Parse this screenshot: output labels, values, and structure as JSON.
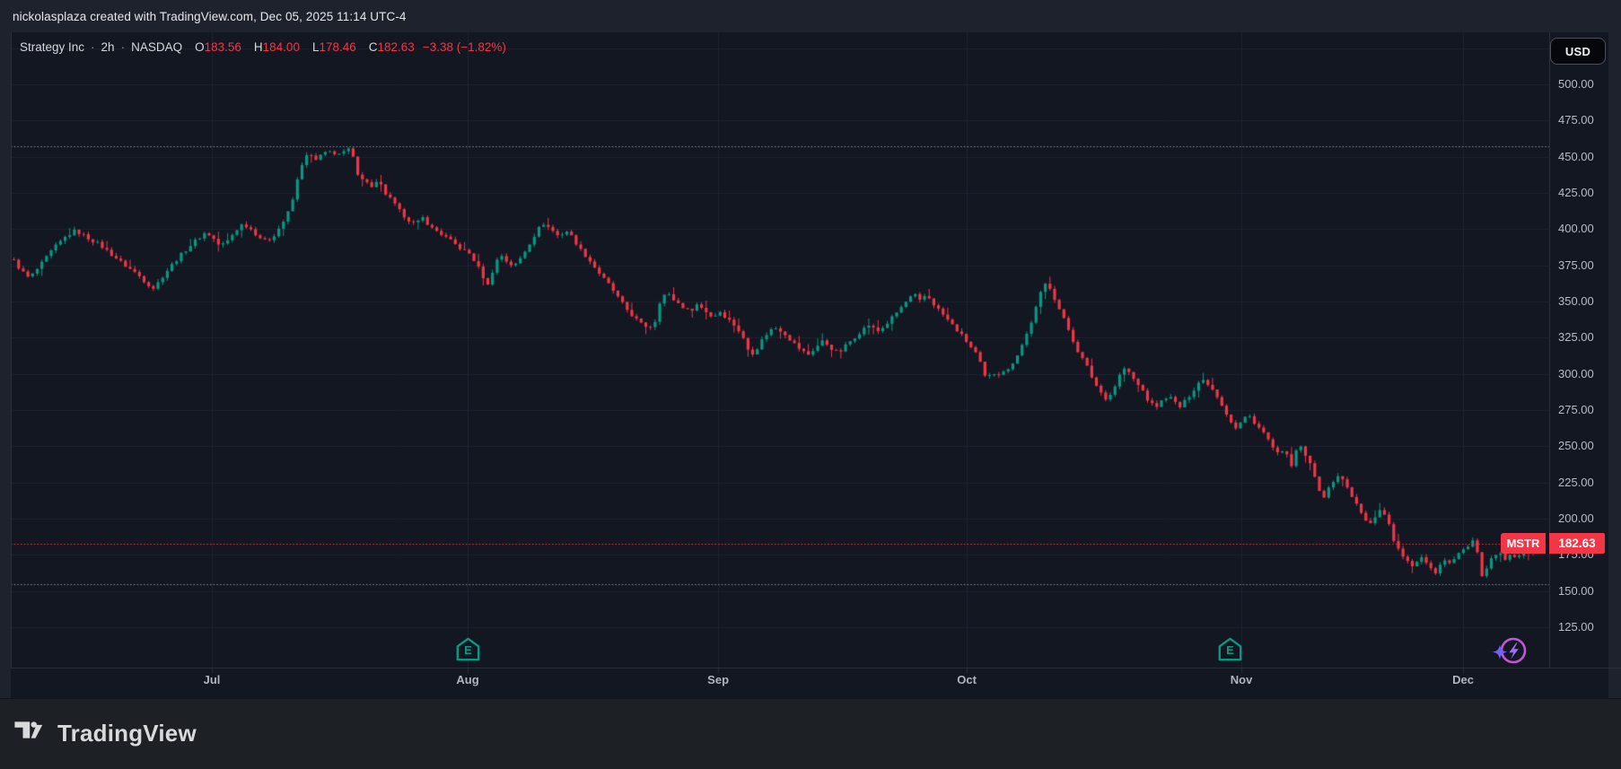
{
  "attribution": {
    "text": "nickolasplaza created with TradingView.com, Dec 05, 2025 11:14 UTC-4"
  },
  "legend": {
    "symbol": "Strategy Inc",
    "separator": "·",
    "interval": "2h",
    "exchange": "NASDAQ",
    "open_label": "O",
    "open": "183.56",
    "high_label": "H",
    "high": "184.00",
    "low_label": "L",
    "low": "178.46",
    "close_label": "C",
    "close": "182.63",
    "change": "−3.38 (−1.82%)"
  },
  "currency_button": {
    "label": "USD"
  },
  "price_label": {
    "ticker": "MSTR",
    "price": "182.63",
    "value": 182.63
  },
  "axis": {
    "price_ticks": [
      {
        "label": "500.00",
        "value": 500
      },
      {
        "label": "475.00",
        "value": 475
      },
      {
        "label": "450.00",
        "value": 450
      },
      {
        "label": "425.00",
        "value": 425
      },
      {
        "label": "400.00",
        "value": 400
      },
      {
        "label": "375.00",
        "value": 375
      },
      {
        "label": "350.00",
        "value": 350
      },
      {
        "label": "325.00",
        "value": 325
      },
      {
        "label": "300.00",
        "value": 300
      },
      {
        "label": "275.00",
        "value": 275
      },
      {
        "label": "250.00",
        "value": 250
      },
      {
        "label": "225.00",
        "value": 225
      },
      {
        "label": "200.00",
        "value": 200
      },
      {
        "label": "175.00",
        "value": 175
      },
      {
        "label": "150.00",
        "value": 150
      },
      {
        "label": "125.00",
        "value": 125
      }
    ],
    "months": [
      {
        "label": "Jul",
        "f": 0.1307
      },
      {
        "label": "Aug",
        "f": 0.297
      },
      {
        "label": "Sep",
        "f": 0.4598
      },
      {
        "label": "Oct",
        "f": 0.6214
      },
      {
        "label": "Nov",
        "f": 0.7999
      },
      {
        "label": "Dec",
        "f": 0.944
      }
    ]
  },
  "markers": {
    "earnings_letter": "E",
    "earnings": [
      {
        "f": 0.297
      },
      {
        "f": 0.7928
      }
    ],
    "flash": {
      "f": 0.9743
    }
  },
  "footer": {
    "brand": "TradingView"
  },
  "colors": {
    "up": "#089981",
    "down": "#f23645",
    "price_line": "#f23645",
    "price_label_bg": "#f23645",
    "range_dotted": "#8b8e98",
    "grid": "#1e2330",
    "pane_bg": "#131722",
    "chrome_bg": "#1e222d",
    "axis_text": "#b8bbc3",
    "earnings": "#089981",
    "flash_ring": "#c653dc",
    "flash_bolt": "#9d71f0",
    "flash_star": "#6e62f5"
  },
  "chart_data": {
    "type": "candlestick",
    "symbol": "MSTR",
    "name": "Strategy Inc",
    "exchange": "NASDAQ",
    "interval": "2h",
    "currency": "USD",
    "last_bar": {
      "open": 183.56,
      "high": 184.0,
      "low": 178.46,
      "close": 182.63,
      "change": -3.38,
      "change_pct": -1.82
    },
    "visible_high": 457.5,
    "visible_low": 154.5,
    "y_axis_ticks": [
      500,
      475,
      450,
      425,
      400,
      375,
      350,
      325,
      300,
      275,
      250,
      225,
      200,
      175,
      150,
      125
    ],
    "x_months": [
      "Jul",
      "Aug",
      "Sep",
      "Oct",
      "Nov",
      "Dec"
    ],
    "bar_count": 330,
    "anchors_note": "price trajectory read from the chart; each item is [x-fraction across pane, price USD]",
    "anchors": [
      [
        0.0,
        378
      ],
      [
        0.005,
        371
      ],
      [
        0.01,
        366
      ],
      [
        0.018,
        376
      ],
      [
        0.026,
        387
      ],
      [
        0.034,
        395
      ],
      [
        0.04,
        399
      ],
      [
        0.048,
        394
      ],
      [
        0.056,
        389
      ],
      [
        0.064,
        382
      ],
      [
        0.072,
        375
      ],
      [
        0.08,
        369
      ],
      [
        0.086,
        363
      ],
      [
        0.091,
        359
      ],
      [
        0.097,
        368
      ],
      [
        0.104,
        377
      ],
      [
        0.111,
        385
      ],
      [
        0.118,
        392
      ],
      [
        0.125,
        398
      ],
      [
        0.13,
        393
      ],
      [
        0.134,
        388
      ],
      [
        0.139,
        392
      ],
      [
        0.144,
        399
      ],
      [
        0.149,
        404
      ],
      [
        0.154,
        400
      ],
      [
        0.159,
        395
      ],
      [
        0.164,
        391
      ],
      [
        0.17,
        397
      ],
      [
        0.175,
        405
      ],
      [
        0.18,
        415
      ],
      [
        0.184,
        433
      ],
      [
        0.188,
        448
      ],
      [
        0.192,
        452
      ],
      [
        0.196,
        447
      ],
      [
        0.2,
        451
      ],
      [
        0.205,
        455
      ],
      [
        0.21,
        450
      ],
      [
        0.214,
        453
      ],
      [
        0.218,
        455
      ],
      [
        0.222,
        449
      ],
      [
        0.2245,
        431
      ],
      [
        0.228,
        436
      ],
      [
        0.232,
        428
      ],
      [
        0.237,
        433
      ],
      [
        0.241,
        425
      ],
      [
        0.246,
        419
      ],
      [
        0.251,
        412
      ],
      [
        0.256,
        407
      ],
      [
        0.261,
        403
      ],
      [
        0.266,
        408
      ],
      [
        0.271,
        401
      ],
      [
        0.276,
        398
      ],
      [
        0.281,
        394
      ],
      [
        0.286,
        390
      ],
      [
        0.291,
        386
      ],
      [
        0.296,
        383
      ],
      [
        0.3,
        377
      ],
      [
        0.304,
        369
      ],
      [
        0.308,
        361
      ],
      [
        0.312,
        374
      ],
      [
        0.316,
        383
      ],
      [
        0.32,
        378
      ],
      [
        0.325,
        374
      ],
      [
        0.33,
        381
      ],
      [
        0.335,
        390
      ],
      [
        0.34,
        399
      ],
      [
        0.344,
        404
      ],
      [
        0.349,
        400
      ],
      [
        0.354,
        395
      ],
      [
        0.359,
        399
      ],
      [
        0.364,
        393
      ],
      [
        0.368,
        386
      ],
      [
        0.373,
        380
      ],
      [
        0.378,
        373
      ],
      [
        0.383,
        366
      ],
      [
        0.388,
        360
      ],
      [
        0.393,
        352
      ],
      [
        0.398,
        345
      ],
      [
        0.403,
        339
      ],
      [
        0.408,
        334
      ],
      [
        0.413,
        332
      ],
      [
        0.417,
        337
      ],
      [
        0.42,
        351
      ],
      [
        0.424,
        356
      ],
      [
        0.429,
        351
      ],
      [
        0.434,
        347
      ],
      [
        0.439,
        343
      ],
      [
        0.444,
        348
      ],
      [
        0.449,
        344
      ],
      [
        0.454,
        339
      ],
      [
        0.459,
        343
      ],
      [
        0.464,
        338
      ],
      [
        0.469,
        333
      ],
      [
        0.473,
        327
      ],
      [
        0.477,
        317
      ],
      [
        0.481,
        314
      ],
      [
        0.486,
        323
      ],
      [
        0.491,
        330
      ],
      [
        0.496,
        332
      ],
      [
        0.501,
        328
      ],
      [
        0.506,
        322
      ],
      [
        0.511,
        317
      ],
      [
        0.516,
        313
      ],
      [
        0.521,
        318
      ],
      [
        0.526,
        323
      ],
      [
        0.531,
        318
      ],
      [
        0.536,
        314
      ],
      [
        0.541,
        320
      ],
      [
        0.546,
        325
      ],
      [
        0.551,
        330
      ],
      [
        0.556,
        334
      ],
      [
        0.561,
        329
      ],
      [
        0.566,
        333
      ],
      [
        0.571,
        339
      ],
      [
        0.576,
        345
      ],
      [
        0.581,
        351
      ],
      [
        0.585,
        355
      ],
      [
        0.589,
        350
      ],
      [
        0.593,
        355
      ],
      [
        0.598,
        348
      ],
      [
        0.603,
        342
      ],
      [
        0.608,
        336
      ],
      [
        0.613,
        330
      ],
      [
        0.618,
        324
      ],
      [
        0.623,
        317
      ],
      [
        0.627,
        312
      ],
      [
        0.63,
        299
      ],
      [
        0.633,
        296
      ],
      [
        0.636,
        302
      ],
      [
        0.639,
        298
      ],
      [
        0.642,
        304
      ],
      [
        0.645,
        300
      ],
      [
        0.648,
        306
      ],
      [
        0.651,
        311
      ],
      [
        0.654,
        317
      ],
      [
        0.657,
        324
      ],
      [
        0.66,
        332
      ],
      [
        0.663,
        341
      ],
      [
        0.666,
        351
      ],
      [
        0.669,
        361
      ],
      [
        0.672,
        363
      ],
      [
        0.675,
        356
      ],
      [
        0.678,
        348
      ],
      [
        0.681,
        341
      ],
      [
        0.684,
        334
      ],
      [
        0.687,
        327
      ],
      [
        0.69,
        319
      ],
      [
        0.693,
        313
      ],
      [
        0.697,
        306
      ],
      [
        0.701,
        297
      ],
      [
        0.705,
        289
      ],
      [
        0.71,
        283
      ],
      [
        0.714,
        287
      ],
      [
        0.718,
        298
      ],
      [
        0.722,
        304
      ],
      [
        0.726,
        299
      ],
      [
        0.73,
        293
      ],
      [
        0.734,
        288
      ],
      [
        0.738,
        280
      ],
      [
        0.742,
        277
      ],
      [
        0.746,
        281
      ],
      [
        0.75,
        285
      ],
      [
        0.754,
        281
      ],
      [
        0.758,
        277
      ],
      [
        0.762,
        282
      ],
      [
        0.766,
        288
      ],
      [
        0.77,
        294
      ],
      [
        0.774,
        296
      ],
      [
        0.778,
        291
      ],
      [
        0.782,
        285
      ],
      [
        0.786,
        277
      ],
      [
        0.79,
        269
      ],
      [
        0.794,
        262
      ],
      [
        0.798,
        267
      ],
      [
        0.802,
        272
      ],
      [
        0.806,
        267
      ],
      [
        0.81,
        262
      ],
      [
        0.814,
        257
      ],
      [
        0.817,
        251
      ],
      [
        0.82,
        246
      ],
      [
        0.823,
        243
      ],
      [
        0.826,
        248
      ],
      [
        0.829,
        243
      ],
      [
        0.8315,
        229
      ],
      [
        0.834,
        252
      ],
      [
        0.837,
        248
      ],
      [
        0.84,
        243
      ],
      [
        0.843,
        236
      ],
      [
        0.846,
        227
      ],
      [
        0.849,
        219
      ],
      [
        0.852,
        215
      ],
      [
        0.855,
        221
      ],
      [
        0.858,
        227
      ],
      [
        0.861,
        230
      ],
      [
        0.864,
        226
      ],
      [
        0.867,
        221
      ],
      [
        0.87,
        215
      ],
      [
        0.873,
        209
      ],
      [
        0.876,
        203
      ],
      [
        0.879,
        198
      ],
      [
        0.882,
        196
      ],
      [
        0.885,
        202
      ],
      [
        0.888,
        207
      ],
      [
        0.891,
        202
      ],
      [
        0.894,
        196
      ],
      [
        0.897,
        185
      ],
      [
        0.9,
        178
      ],
      [
        0.903,
        174
      ],
      [
        0.906,
        170
      ],
      [
        0.909,
        166
      ],
      [
        0.912,
        170
      ],
      [
        0.915,
        174
      ],
      [
        0.918,
        170
      ],
      [
        0.921,
        166
      ],
      [
        0.924,
        163
      ],
      [
        0.927,
        168
      ],
      [
        0.93,
        172
      ],
      [
        0.933,
        169
      ],
      [
        0.936,
        173
      ],
      [
        0.939,
        176
      ],
      [
        0.942,
        178
      ],
      [
        0.945,
        181
      ],
      [
        0.948,
        184
      ],
      [
        0.951,
        179
      ],
      [
        0.9545,
        158
      ],
      [
        0.958,
        166
      ],
      [
        0.961,
        173
      ],
      [
        0.965,
        176
      ],
      [
        0.969,
        172
      ],
      [
        0.973,
        177
      ],
      [
        0.977,
        173
      ],
      [
        0.981,
        178
      ],
      [
        0.985,
        175
      ],
      [
        0.988,
        179
      ],
      [
        0.991,
        181
      ],
      [
        0.9935,
        182.63
      ]
    ]
  }
}
